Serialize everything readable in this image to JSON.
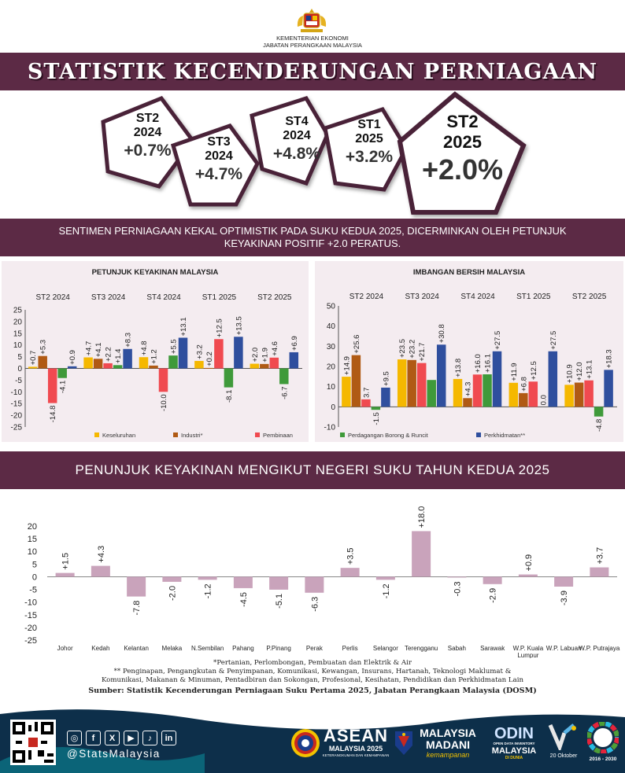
{
  "header": {
    "ministry_line1": "KEMENTERIAN EKONOMI",
    "ministry_line2": "JABATAN PERANGKAAN MALAYSIA",
    "title": "STATISTIK KECENDERUNGAN PERNIAGAAN"
  },
  "quarters": [
    {
      "q": "ST2",
      "year": "2024",
      "value": "+0.7%"
    },
    {
      "q": "ST3",
      "year": "2024",
      "value": "+4.7%"
    },
    {
      "q": "ST4",
      "year": "2024",
      "value": "+4.8%"
    },
    {
      "q": "ST1",
      "year": "2025",
      "value": "+3.2%"
    },
    {
      "q": "ST2",
      "year": "2025",
      "value": "+2.0%"
    }
  ],
  "sentiment": {
    "line1": "SENTIMEN PERNIAGAAN KEKAL OPTIMISTIK PADA SUKU KEDUA 2025, DICERMINKAN OLEH PETUNJUK",
    "line2": "KEYAKINAN POSITIF +2.0 PERATUS."
  },
  "state_section_title": "PENUNJUK KEYAKINAN MENGIKUT NEGERI SUKU TAHUN KEDUA 2025",
  "notes": {
    "note1": "*Pertanian, Perlombongan, Pembuatan dan Elektrik & Air",
    "note2a": "** Penginapan, Pengangkutan & Penyimpanan, Komunikasi, Kewangan, Insurans, Hartanah, Teknologi Maklumat &",
    "note2b": "Komunikasi, Makanan & Minuman, Pentadbiran dan Sokongan, Profesional, Kesihatan, Pendidikan dan Perkhidmatan Lain",
    "source": "Sumber: Statistik Kecenderungan Perniagaan Suku Pertama 2025, Jabatan Perangkaan Malaysia (DOSM)"
  },
  "footer": {
    "handle": "@StatsMalaysia",
    "social": [
      "◎",
      "f",
      "X",
      "▶",
      "♪",
      "in"
    ],
    "asean_big": "ASEAN",
    "asean_small": "MALAYSIA 2025",
    "asean_tag": "KETERANGKUMAN DAN KEMAMPANAN",
    "madani_big": "MALAYSIA",
    "madani_big2": "MADANI",
    "madani_small": "kemampanan",
    "odin_big": "ODIN",
    "odin_sub": "OPEN DATA INVENTORY",
    "odin_big2": "MALAYSIA",
    "odin_sub2": "DI DUNIA",
    "day": "20 Oktober",
    "sdg_years": "2016 - 2030"
  },
  "chart_data": [
    {
      "type": "bar",
      "title": "PETUNJUK KEYAKINAN MALAYSIA",
      "categories": [
        "ST2 2024",
        "ST3 2024",
        "ST4 2024",
        "ST1 2025",
        "ST2 2025"
      ],
      "ylim": [
        -25,
        25
      ],
      "yticks": [
        25,
        20,
        15,
        10,
        5,
        0,
        -5,
        -10,
        -15,
        -20,
        -25
      ],
      "series": [
        {
          "name": "Keseluruhan",
          "color": "#f5b800",
          "values": [
            0.7,
            4.7,
            4.8,
            3.2,
            2.0
          ],
          "labels": [
            "+0.7",
            "+4.7",
            "+4.8",
            "+3.2",
            "+2.0"
          ]
        },
        {
          "name": "Industri*",
          "color": "#b05a14",
          "values": [
            5.3,
            4.1,
            1.2,
            0.2,
            1.9
          ],
          "labels": [
            "+5.3",
            "+4.1",
            "+1.2",
            "+0.2",
            "+1.9"
          ]
        },
        {
          "name": "Pembinaan",
          "color": "#f04a50",
          "values": [
            -14.8,
            2.2,
            -10.0,
            12.5,
            4.6
          ],
          "labels": [
            "-14.8",
            "+2.2",
            "-10.0",
            "+12.5",
            "+4.6"
          ]
        },
        {
          "name": "Perdagangan Borong & Runcit",
          "color": "#3f9a3a",
          "values": [
            -4.1,
            1.4,
            5.5,
            -8.1,
            -6.7
          ],
          "labels": [
            "-4.1",
            "+1.4",
            "+5.5",
            "-8.1",
            "-6.7"
          ]
        },
        {
          "name": "Perkhidmatan**",
          "color": "#2f4f9e",
          "values": [
            0.9,
            8.3,
            13.1,
            13.5,
            6.9
          ],
          "labels": [
            "+0.9",
            "+8.3",
            "+13.1",
            "+13.5",
            "+6.9"
          ]
        }
      ],
      "legend": [
        "Keseluruhan",
        "Industri*",
        "Pembinaan"
      ]
    },
    {
      "type": "bar",
      "title": "IMBANGAN BERSIH MALAYSIA",
      "categories": [
        "ST2 2024",
        "ST3 2024",
        "ST4 2024",
        "ST1 2025",
        "ST2 2025"
      ],
      "ylim": [
        -10,
        50
      ],
      "yticks": [
        50,
        40,
        30,
        20,
        10,
        0,
        -10
      ],
      "series": [
        {
          "name": "Keseluruhan",
          "color": "#f5b800",
          "values": [
            14.9,
            23.5,
            13.8,
            11.9,
            10.9
          ],
          "labels": [
            "+14.9",
            "+23.5",
            "+13.8",
            "+11.9",
            "+10.9"
          ]
        },
        {
          "name": "Industri*",
          "color": "#b05a14",
          "values": [
            25.6,
            23.2,
            4.3,
            6.8,
            12.0
          ],
          "labels": [
            "+25.6",
            "+23.2",
            "+4.3",
            "+6.8",
            "+12.0"
          ]
        },
        {
          "name": "Pembinaan",
          "color": "#f04a50",
          "values": [
            3.7,
            21.7,
            16.0,
            12.5,
            13.1
          ],
          "labels": [
            "3.7",
            "+21.7",
            "+16.0",
            "+12.5",
            "+13.1"
          ]
        },
        {
          "name": "Perdagangan Borong & Runcit",
          "color": "#3f9a3a",
          "values": [
            -1.5,
            13.3,
            16.1,
            0.0,
            -4.8
          ],
          "labels": [
            "-1.5",
            "",
            "+16.1",
            "0.0",
            "-4.8"
          ]
        },
        {
          "name": "Perkhidmatan**",
          "color": "#2f4f9e",
          "values": [
            9.5,
            30.8,
            27.5,
            27.5,
            18.3
          ],
          "labels": [
            "+9.5",
            "+30.8",
            "+27.5",
            "+27.5",
            "+18.3"
          ]
        }
      ],
      "legend": [
        "Perdagangan Borong & Runcit",
        "Perkhidmatan**"
      ]
    },
    {
      "type": "bar",
      "title": "PENUNJUK KEYAKINAN MENGIKUT NEGERI SUKU TAHUN KEDUA 2025",
      "categories": [
        "Johor",
        "Kedah",
        "Kelantan",
        "Melaka",
        "N.Sembilan",
        "Pahang",
        "P.Pinang",
        "Perak",
        "Perlis",
        "Selangor",
        "Terengganu",
        "Sabah",
        "Sarawak",
        "W.P. Kuala Lumpur",
        "W.P. Labuan",
        "W.P. Putrajaya"
      ],
      "values": [
        1.5,
        4.3,
        -7.8,
        -2.0,
        -1.2,
        -4.5,
        -5.1,
        -6.3,
        3.5,
        -1.2,
        18.0,
        -0.3,
        -2.9,
        0.9,
        -3.9,
        3.7
      ],
      "labels": [
        "+1.5",
        "+4.3",
        "-7.8",
        "-2.0",
        "-1.2",
        "-4.5",
        "-5.1",
        "-6.3",
        "+3.5",
        "-1.2",
        "+18.0",
        "-0.3",
        "-2.9",
        "+0.9",
        "-3.9",
        "+3.7"
      ],
      "color": "#c9a3bb",
      "ylim": [
        -25,
        20
      ],
      "yticks": [
        20,
        15,
        10,
        5,
        0,
        -5,
        -10,
        -15,
        -20,
        -25
      ]
    }
  ]
}
